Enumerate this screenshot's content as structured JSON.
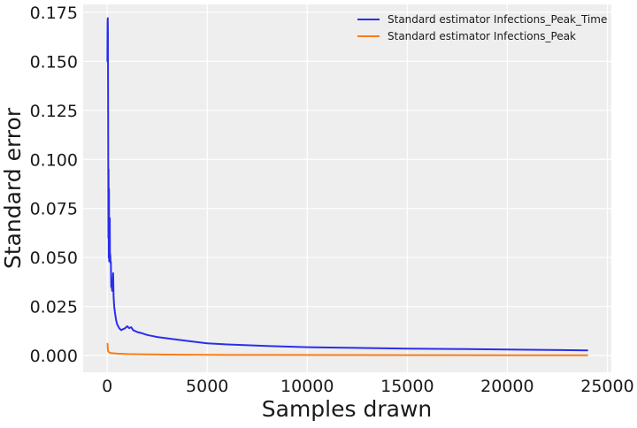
{
  "chart_data": {
    "type": "line",
    "title": "",
    "xlabel": "Samples drawn",
    "ylabel": "Standard error",
    "xlim": [
      -1200,
      25200
    ],
    "ylim": [
      -0.0085,
      0.179
    ],
    "xticks": [
      0,
      5000,
      10000,
      15000,
      20000,
      25000
    ],
    "xtick_labels": [
      "0",
      "5000",
      "10000",
      "15000",
      "20000",
      "25000"
    ],
    "yticks": [
      0.0,
      0.025,
      0.05,
      0.075,
      0.1,
      0.125,
      0.15,
      0.175
    ],
    "ytick_labels": [
      "0.000",
      "0.025",
      "0.050",
      "0.075",
      "0.100",
      "0.125",
      "0.150",
      "0.175"
    ],
    "grid": true,
    "legend": {
      "position": "top-right"
    },
    "series": [
      {
        "name": "Standard estimator Infections_Peak_Time",
        "color": "#2a2eec",
        "x": [
          10,
          20,
          30,
          40,
          50,
          60,
          70,
          80,
          90,
          100,
          110,
          120,
          130,
          140,
          150,
          160,
          170,
          180,
          190,
          200,
          220,
          250,
          280,
          300,
          320,
          350,
          400,
          450,
          500,
          600,
          700,
          800,
          900,
          1000,
          1100,
          1200,
          1300,
          1500,
          1700,
          2000,
          2500,
          3000,
          4000,
          5000,
          6000,
          8000,
          10000,
          12000,
          15000,
          18000,
          21000,
          24000
        ],
        "y": [
          0.15,
          0.17,
          0.172,
          0.165,
          0.107,
          0.06,
          0.095,
          0.05,
          0.085,
          0.048,
          0.065,
          0.05,
          0.07,
          0.049,
          0.052,
          0.05,
          0.047,
          0.048,
          0.046,
          0.035,
          0.036,
          0.033,
          0.038,
          0.042,
          0.03,
          0.025,
          0.021,
          0.018,
          0.016,
          0.014,
          0.013,
          0.0135,
          0.014,
          0.015,
          0.014,
          0.0145,
          0.013,
          0.012,
          0.0115,
          0.0105,
          0.0095,
          0.0088,
          0.0075,
          0.0063,
          0.0057,
          0.0049,
          0.0043,
          0.004,
          0.0036,
          0.0033,
          0.003,
          0.0027
        ]
      },
      {
        "name": "Standard estimator Infections_Peak",
        "color": "#fa7c17",
        "x": [
          10,
          20,
          30,
          40,
          50,
          100,
          200,
          500,
          1000,
          2000,
          3000,
          5000,
          8000,
          12000,
          16000,
          20000,
          24000
        ],
        "y": [
          0.006,
          0.0058,
          0.004,
          0.0025,
          0.0022,
          0.0017,
          0.0013,
          0.001,
          0.0008,
          0.0006,
          0.0005,
          0.0004,
          0.00033,
          0.00028,
          0.00025,
          0.00022,
          0.0002
        ]
      }
    ]
  }
}
